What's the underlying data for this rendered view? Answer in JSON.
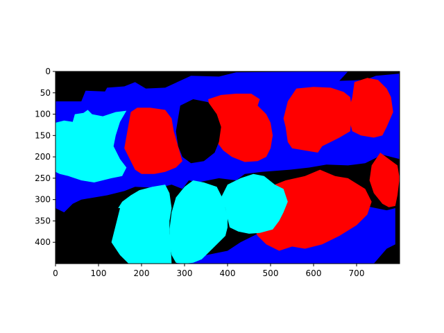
{
  "chart_data": {
    "type": "heatmap",
    "description_classes": [
      "background",
      "blue",
      "cyan",
      "red"
    ],
    "colors": {
      "background": "#000000",
      "blue": "#0000ff",
      "cyan": "#00ffff",
      "red": "#ff0000",
      "axes": "#000000",
      "figure": "#ffffff"
    },
    "image_width": 800,
    "image_height": 450,
    "xlim": [
      0,
      800
    ],
    "ylim": [
      450,
      0
    ],
    "xticks": [
      0,
      100,
      200,
      300,
      400,
      500,
      600,
      700
    ],
    "yticks": [
      0,
      50,
      100,
      150,
      200,
      250,
      300,
      350,
      400
    ],
    "xlabel": "",
    "ylabel": "",
    "title": "",
    "regions": [
      {
        "name": "blue-upper-band",
        "color": "blue",
        "points": [
          [
            0,
            70
          ],
          [
            60,
            70
          ],
          [
            70,
            45
          ],
          [
            115,
            47
          ],
          [
            120,
            38
          ],
          [
            160,
            35
          ],
          [
            185,
            25
          ],
          [
            210,
            40
          ],
          [
            255,
            38
          ],
          [
            315,
            10
          ],
          [
            380,
            12
          ],
          [
            420,
            2
          ],
          [
            680,
            0
          ],
          [
            660,
            22
          ],
          [
            720,
            20
          ],
          [
            745,
            10
          ],
          [
            800,
            5
          ],
          [
            800,
            205
          ],
          [
            760,
            195
          ],
          [
            720,
            215
          ],
          [
            680,
            220
          ],
          [
            630,
            218
          ],
          [
            590,
            225
          ],
          [
            545,
            230
          ],
          [
            480,
            235
          ],
          [
            440,
            240
          ],
          [
            420,
            255
          ],
          [
            380,
            250
          ],
          [
            330,
            260
          ],
          [
            310,
            255
          ],
          [
            295,
            275
          ],
          [
            270,
            265
          ],
          [
            250,
            270
          ],
          [
            220,
            272
          ],
          [
            185,
            270
          ],
          [
            160,
            280
          ],
          [
            120,
            290
          ],
          [
            90,
            295
          ],
          [
            60,
            300
          ],
          [
            40,
            310
          ],
          [
            20,
            330
          ],
          [
            0,
            320
          ]
        ]
      },
      {
        "name": "blue-lower-band",
        "color": "blue",
        "points": [
          [
            620,
            330
          ],
          [
            680,
            330
          ],
          [
            720,
            315
          ],
          [
            770,
            325
          ],
          [
            790,
            320
          ],
          [
            790,
            405
          ],
          [
            770,
            415
          ],
          [
            740,
            450
          ],
          [
            280,
            450
          ],
          [
            300,
            440
          ],
          [
            350,
            430
          ],
          [
            400,
            420
          ],
          [
            430,
            400
          ],
          [
            470,
            380
          ],
          [
            520,
            370
          ],
          [
            560,
            380
          ]
        ]
      },
      {
        "name": "cyan-left",
        "color": "cyan",
        "points": [
          [
            0,
            120
          ],
          [
            20,
            115
          ],
          [
            40,
            118
          ],
          [
            45,
            100
          ],
          [
            65,
            97
          ],
          [
            75,
            90
          ],
          [
            85,
            100
          ],
          [
            110,
            105
          ],
          [
            140,
            95
          ],
          [
            165,
            92
          ],
          [
            150,
            118
          ],
          [
            140,
            150
          ],
          [
            135,
            175
          ],
          [
            150,
            205
          ],
          [
            165,
            225
          ],
          [
            155,
            245
          ],
          [
            130,
            250
          ],
          [
            90,
            260
          ],
          [
            60,
            255
          ],
          [
            30,
            245
          ],
          [
            10,
            240
          ],
          [
            0,
            235
          ]
        ]
      },
      {
        "name": "red-left",
        "color": "red",
        "points": [
          [
            175,
            95
          ],
          [
            190,
            85
          ],
          [
            220,
            85
          ],
          [
            255,
            90
          ],
          [
            270,
            110
          ],
          [
            275,
            140
          ],
          [
            285,
            175
          ],
          [
            295,
            210
          ],
          [
            280,
            225
          ],
          [
            255,
            235
          ],
          [
            230,
            240
          ],
          [
            200,
            240
          ],
          [
            185,
            230
          ],
          [
            175,
            210
          ],
          [
            160,
            180
          ]
        ]
      },
      {
        "name": "red-mid-upper",
        "color": "red",
        "points": [
          [
            355,
            65
          ],
          [
            385,
            55
          ],
          [
            420,
            52
          ],
          [
            455,
            52
          ],
          [
            475,
            65
          ],
          [
            470,
            80
          ],
          [
            490,
            100
          ],
          [
            500,
            120
          ],
          [
            505,
            150
          ],
          [
            500,
            180
          ],
          [
            490,
            200
          ],
          [
            470,
            210
          ],
          [
            440,
            212
          ],
          [
            410,
            200
          ],
          [
            390,
            185
          ],
          [
            375,
            165
          ],
          [
            370,
            130
          ],
          [
            360,
            100
          ]
        ]
      },
      {
        "name": "red-upper-right-a",
        "color": "red",
        "points": [
          [
            560,
            40
          ],
          [
            600,
            36
          ],
          [
            640,
            38
          ],
          [
            670,
            48
          ],
          [
            685,
            60
          ],
          [
            690,
            90
          ],
          [
            685,
            140
          ],
          [
            660,
            155
          ],
          [
            640,
            165
          ],
          [
            620,
            175
          ],
          [
            610,
            190
          ],
          [
            580,
            185
          ],
          [
            550,
            180
          ],
          [
            540,
            165
          ],
          [
            535,
            130
          ],
          [
            530,
            110
          ],
          [
            540,
            70
          ]
        ]
      },
      {
        "name": "red-upper-right-b",
        "color": "red",
        "points": [
          [
            695,
            25
          ],
          [
            725,
            15
          ],
          [
            750,
            20
          ],
          [
            770,
            40
          ],
          [
            780,
            60
          ],
          [
            785,
            95
          ],
          [
            770,
            130
          ],
          [
            760,
            150
          ],
          [
            740,
            155
          ],
          [
            710,
            150
          ],
          [
            690,
            140
          ],
          [
            680,
            100
          ],
          [
            690,
            60
          ]
        ]
      },
      {
        "name": "red-right-small",
        "color": "red",
        "points": [
          [
            755,
            190
          ],
          [
            775,
            205
          ],
          [
            795,
            220
          ],
          [
            800,
            250
          ],
          [
            795,
            290
          ],
          [
            790,
            315
          ],
          [
            775,
            318
          ],
          [
            760,
            310
          ],
          [
            740,
            285
          ],
          [
            730,
            255
          ],
          [
            735,
            220
          ]
        ]
      },
      {
        "name": "red-lower-center",
        "color": "red",
        "points": [
          [
            535,
            255
          ],
          [
            580,
            245
          ],
          [
            615,
            230
          ],
          [
            650,
            245
          ],
          [
            680,
            250
          ],
          [
            720,
            275
          ],
          [
            735,
            305
          ],
          [
            725,
            335
          ],
          [
            700,
            360
          ],
          [
            660,
            385
          ],
          [
            620,
            405
          ],
          [
            580,
            415
          ],
          [
            550,
            410
          ],
          [
            520,
            420
          ],
          [
            490,
            405
          ],
          [
            470,
            385
          ],
          [
            455,
            355
          ],
          [
            465,
            320
          ],
          [
            480,
            285
          ],
          [
            510,
            265
          ]
        ]
      },
      {
        "name": "cyan-mid",
        "color": "cyan",
        "points": [
          [
            400,
            265
          ],
          [
            430,
            250
          ],
          [
            460,
            240
          ],
          [
            485,
            245
          ],
          [
            510,
            265
          ],
          [
            530,
            275
          ],
          [
            540,
            305
          ],
          [
            530,
            330
          ],
          [
            520,
            350
          ],
          [
            505,
            370
          ],
          [
            475,
            378
          ],
          [
            450,
            380
          ],
          [
            425,
            375
          ],
          [
            405,
            365
          ],
          [
            400,
            345
          ],
          [
            395,
            320
          ],
          [
            385,
            295
          ]
        ]
      },
      {
        "name": "cyan-lower-center",
        "color": "cyan",
        "points": [
          [
            300,
            270
          ],
          [
            320,
            255
          ],
          [
            345,
            260
          ],
          [
            375,
            270
          ],
          [
            390,
            300
          ],
          [
            395,
            320
          ],
          [
            400,
            340
          ],
          [
            400,
            365
          ],
          [
            395,
            385
          ],
          [
            370,
            410
          ],
          [
            340,
            440
          ],
          [
            320,
            448
          ],
          [
            300,
            450
          ],
          [
            280,
            448
          ],
          [
            270,
            430
          ],
          [
            265,
            400
          ],
          [
            265,
            370
          ],
          [
            270,
            330
          ],
          [
            280,
            295
          ]
        ]
      },
      {
        "name": "cyan-lower-left",
        "color": "cyan",
        "points": [
          [
            155,
            305
          ],
          [
            175,
            290
          ],
          [
            195,
            278
          ],
          [
            225,
            270
          ],
          [
            255,
            265
          ],
          [
            265,
            285
          ],
          [
            270,
            320
          ],
          [
            265,
            350
          ],
          [
            265,
            380
          ],
          [
            268,
            410
          ],
          [
            270,
            450
          ],
          [
            160,
            450
          ],
          [
            140,
            425
          ],
          [
            130,
            400
          ],
          [
            125,
            375
          ],
          [
            130,
            345
          ]
        ]
      },
      {
        "name": "black-center-blob",
        "color": "background",
        "points": [
          [
            290,
            80
          ],
          [
            320,
            65
          ],
          [
            355,
            72
          ],
          [
            375,
            100
          ],
          [
            385,
            130
          ],
          [
            380,
            165
          ],
          [
            370,
            190
          ],
          [
            345,
            210
          ],
          [
            315,
            215
          ],
          [
            295,
            200
          ],
          [
            285,
            175
          ],
          [
            280,
            140
          ],
          [
            285,
            110
          ]
        ]
      },
      {
        "name": "black-lower-left-block",
        "color": "background",
        "points": [
          [
            0,
            345
          ],
          [
            60,
            330
          ],
          [
            110,
            320
          ],
          [
            150,
            320
          ],
          [
            140,
            360
          ],
          [
            130,
            400
          ],
          [
            150,
            430
          ],
          [
            170,
            450
          ],
          [
            0,
            450
          ]
        ]
      }
    ]
  }
}
